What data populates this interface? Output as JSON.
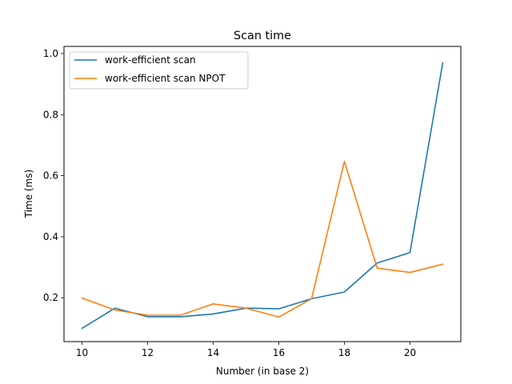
{
  "chart_data": {
    "type": "line",
    "title": "Scan time",
    "xlabel": "Number (in base 2)",
    "ylabel": "Time (ms)",
    "xlim": [
      9.45,
      21.55
    ],
    "ylim": [
      0.0565,
      1.0235
    ],
    "xticks": [
      10,
      12,
      14,
      16,
      18,
      20
    ],
    "yticks": [
      0.2,
      0.4,
      0.6,
      0.8,
      1.0
    ],
    "xtick_labels": [
      "10",
      "12",
      "14",
      "16",
      "18",
      "20"
    ],
    "ytick_labels": [
      "0.2",
      "0.4",
      "0.6",
      "0.8",
      "1.0"
    ],
    "x": [
      10,
      11,
      12,
      13,
      14,
      15,
      16,
      17,
      18,
      19,
      20,
      21
    ],
    "series": [
      {
        "name": "work-efficient scan",
        "color": "#1f77b4",
        "values": [
          0.1,
          0.166,
          0.138,
          0.138,
          0.147,
          0.166,
          0.164,
          0.197,
          0.219,
          0.314,
          0.348,
          0.97
        ]
      },
      {
        "name": "work-efficient scan NPOT",
        "color": "#ff7f0e",
        "values": [
          0.199,
          0.16,
          0.143,
          0.143,
          0.18,
          0.166,
          0.137,
          0.197,
          0.647,
          0.297,
          0.283,
          0.31
        ]
      }
    ],
    "legend": "upper-left",
    "grid": false
  }
}
